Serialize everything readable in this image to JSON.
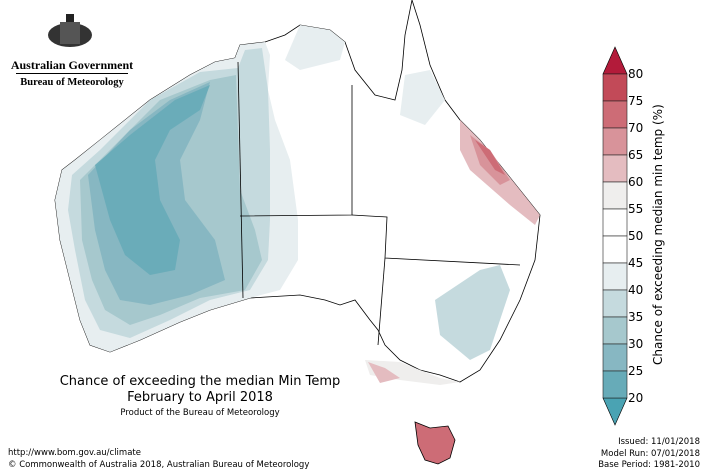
{
  "logo": {
    "line1": "Australian Government",
    "line2": "Bureau of Meteorology"
  },
  "title": {
    "line1": "Chance of exceeding the median Min Temp",
    "line2": "February to April 2018",
    "product": "Product of the Bureau of Meteorology"
  },
  "footer": {
    "url": "http://www.bom.gov.au/climate",
    "copyright": "© Commonwealth of Australia 2018, Australian Bureau of Meteorology"
  },
  "meta": {
    "issued": "Issued: 11/01/2018",
    "model_run": "Model Run: 07/01/2018",
    "base_period": "Base Period: 1981-2010"
  },
  "colorbar": {
    "label": "Chance of exceeding median min temp (%)",
    "ticks": [
      "80",
      "75",
      "70",
      "65",
      "60",
      "55",
      "50",
      "45",
      "40",
      "35",
      "30",
      "25",
      "20"
    ],
    "colors": [
      "#c24a58",
      "#cd6c76",
      "#d8939a",
      "#e4bcc0",
      "#efeeed",
      "#ffffff",
      "#ffffff",
      "#e7eef0",
      "#c5dade",
      "#a6c8cd",
      "#87b7c2",
      "#67abb8"
    ],
    "over_color": "#b31b3a",
    "under_color": "#4aa3b3"
  }
}
